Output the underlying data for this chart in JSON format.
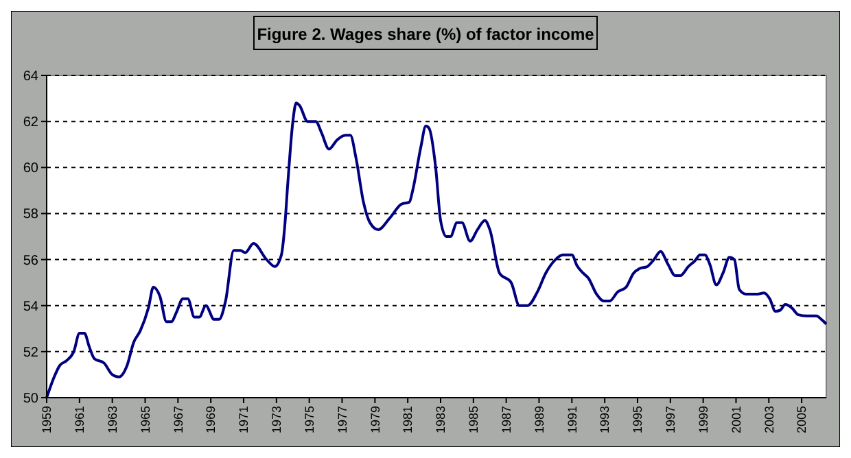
{
  "chart_data": {
    "type": "line",
    "title": "Figure 2. Wages share (%) of factor income",
    "x": [
      1959.0,
      1959.4,
      1959.8,
      1960.2,
      1960.65,
      1961.0,
      1961.3,
      1961.6,
      1961.9,
      1962.5,
      1963.0,
      1963.4,
      1963.9,
      1964.3,
      1964.7,
      1965.2,
      1965.5,
      1965.9,
      1966.3,
      1966.6,
      1966.9,
      1967.3,
      1967.6,
      1968.0,
      1968.3,
      1968.7,
      1969.2,
      1969.5,
      1969.9,
      1970.4,
      1970.8,
      1971.1,
      1971.6,
      1972.4,
      1972.9,
      1973.3,
      1973.5,
      1973.7,
      1974.0,
      1974.2,
      1974.4,
      1974.9,
      1975.4,
      1975.75,
      1976.2,
      1976.7,
      1977.2,
      1977.5,
      1977.85,
      1978.3,
      1978.7,
      1979.2,
      1979.9,
      1980.6,
      1981.1,
      1981.3,
      1981.8,
      1982.1,
      1982.3,
      1982.7,
      1983.0,
      1983.35,
      1983.6,
      1984.0,
      1984.3,
      1984.8,
      1985.25,
      1985.7,
      1986.0,
      1986.6,
      1987.3,
      1987.8,
      1988.3,
      1988.9,
      1989.4,
      1990.0,
      1990.45,
      1991.0,
      1991.3,
      1991.7,
      1992.0,
      1992.5,
      1992.95,
      1993.3,
      1993.8,
      1994.3,
      1994.75,
      1995.1,
      1995.6,
      1996.0,
      1996.4,
      1996.85,
      1997.3,
      1997.6,
      1998.1,
      1998.5,
      1998.8,
      1999.1,
      1999.4,
      1999.8,
      2000.2,
      2000.6,
      2000.9,
      2001.2,
      2001.6,
      2002.3,
      2002.7,
      2003.05,
      2003.4,
      2003.7,
      2004.0,
      2004.4,
      2004.8,
      2005.3,
      2005.9,
      2006.2,
      2006.5
    ],
    "series": [
      {
        "color": "#000080",
        "values": [
          50.0,
          50.8,
          51.4,
          51.6,
          52.0,
          52.8,
          52.8,
          52.2,
          51.7,
          51.5,
          51.0,
          50.9,
          51.4,
          52.4,
          52.9,
          53.9,
          54.8,
          54.4,
          53.3,
          53.3,
          53.7,
          54.3,
          54.3,
          53.5,
          53.5,
          54.0,
          53.4,
          53.4,
          54.2,
          56.4,
          56.4,
          56.3,
          56.7,
          56.0,
          55.7,
          56.2,
          57.4,
          59.4,
          62.0,
          62.8,
          62.7,
          62.0,
          62.0,
          61.5,
          60.8,
          61.2,
          61.4,
          61.4,
          60.4,
          58.5,
          57.6,
          57.3,
          57.8,
          58.4,
          58.5,
          59.0,
          60.9,
          61.8,
          61.7,
          60.0,
          57.7,
          57.0,
          57.0,
          57.6,
          57.6,
          56.8,
          57.3,
          57.7,
          57.3,
          55.4,
          55.0,
          54.0,
          54.0,
          54.6,
          55.4,
          56.0,
          56.2,
          56.2,
          55.75,
          55.4,
          55.2,
          54.5,
          54.2,
          54.2,
          54.6,
          54.8,
          55.4,
          55.6,
          55.7,
          56.0,
          56.35,
          55.8,
          55.3,
          55.3,
          55.7,
          55.95,
          56.2,
          56.2,
          55.8,
          54.9,
          55.4,
          56.1,
          56.0,
          54.7,
          54.5,
          54.5,
          54.55,
          54.3,
          53.75,
          53.8,
          54.05,
          53.9,
          53.6,
          53.55,
          53.55,
          53.4,
          53.2
        ]
      }
    ],
    "xlim": [
      1959,
      2006.5
    ],
    "xticks": [
      1959,
      1961,
      1963,
      1965,
      1967,
      1969,
      1971,
      1973,
      1975,
      1977,
      1979,
      1981,
      1983,
      1985,
      1987,
      1989,
      1991,
      1993,
      1995,
      1997,
      1999,
      2001,
      2003,
      2005
    ],
    "ylim": [
      50,
      64
    ],
    "yticks": [
      50,
      52,
      54,
      56,
      58,
      60,
      62,
      64
    ],
    "grid": "y",
    "line_style": "solid",
    "marker": "none"
  }
}
